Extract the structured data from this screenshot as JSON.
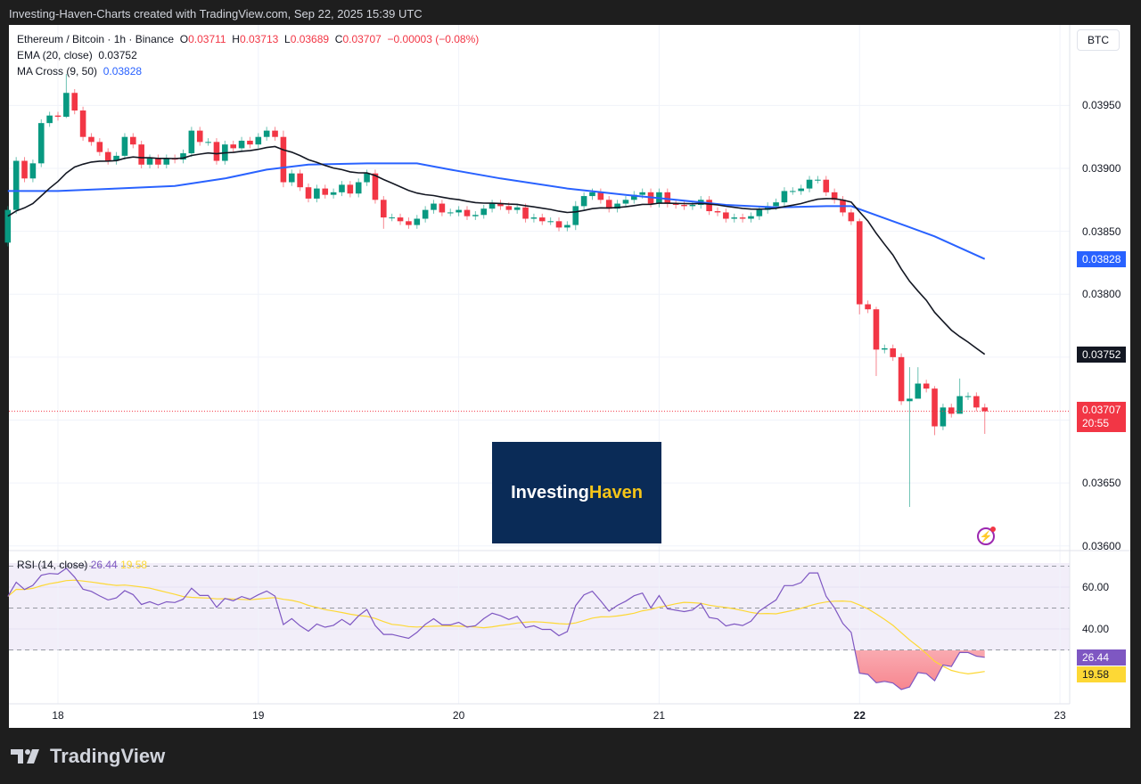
{
  "header": {
    "title": "Investing-Haven-Charts created with TradingView.com, Sep 22, 2025 15:39 UTC"
  },
  "legend": {
    "symbol": "Ethereum / Bitcoin · 1h · Binance",
    "o_label": "O",
    "o": "0.03711",
    "h_label": "H",
    "h": "0.03713",
    "l_label": "L",
    "l": "0.03689",
    "c_label": "C",
    "c": "0.03707",
    "change": "−0.00003 (−0.08%)",
    "ema_label": "EMA (20, close)",
    "ema_value": "0.03752",
    "ma_label": "MA Cross (9, 50)",
    "ma_value": "0.03828",
    "rsi_label": "RSI (14, close)",
    "rsi_value": "26.44",
    "rsi_ma_value": "19.58"
  },
  "currency_button": "BTC",
  "watermark": {
    "part1": "Investing",
    "part2": "Haven"
  },
  "brand": "TradingView",
  "price_tags": {
    "ma": "0.03828",
    "ema": "0.03752",
    "last": "0.03707",
    "countdown": "20:55",
    "rsi": "26.44",
    "rsi_ma": "19.58"
  },
  "colors": {
    "up": "#089981",
    "down": "#f23645",
    "ema": "#131722",
    "ma": "#2962ff",
    "rsi": "#7e57c2",
    "rsi_ma": "#fdd835"
  },
  "chart_data": {
    "type": "candlestick",
    "title": "Ethereum / Bitcoin · 1h · Binance",
    "start": "Sep 17 18:00",
    "interval_hours": 1,
    "first_open": 0.03841,
    "close": [
      0.03867,
      0.03906,
      0.03892,
      0.03904,
      0.03936,
      0.03942,
      0.03941,
      0.0396,
      0.03946,
      0.03925,
      0.03921,
      0.03913,
      0.03906,
      0.0391,
      0.03925,
      0.03919,
      0.03903,
      0.03908,
      0.03903,
      0.03908,
      0.03907,
      0.03912,
      0.0393,
      0.03921,
      0.03921,
      0.03906,
      0.03919,
      0.03916,
      0.03922,
      0.03919,
      0.03925,
      0.0393,
      0.03925,
      0.03889,
      0.03896,
      0.03885,
      0.03876,
      0.03884,
      0.03879,
      0.03881,
      0.03887,
      0.0388,
      0.03889,
      0.03896,
      0.03875,
      0.03861,
      0.03861,
      0.03858,
      0.03855,
      0.0386,
      0.03867,
      0.03872,
      0.03865,
      0.03865,
      0.03867,
      0.03862,
      0.03863,
      0.03868,
      0.03872,
      0.0387,
      0.03867,
      0.03869,
      0.0386,
      0.03861,
      0.03858,
      0.03858,
      0.03853,
      0.03855,
      0.0387,
      0.03878,
      0.03881,
      0.03875,
      0.03868,
      0.03872,
      0.03875,
      0.03879,
      0.03881,
      0.03872,
      0.03881,
      0.03872,
      0.03871,
      0.0387,
      0.03871,
      0.03875,
      0.03866,
      0.03865,
      0.0386,
      0.03861,
      0.0386,
      0.03862,
      0.03867,
      0.0387,
      0.03873,
      0.03882,
      0.03882,
      0.03884,
      0.03891,
      0.03891,
      0.03881,
      0.03875,
      0.03865,
      0.03858,
      0.03792,
      0.03788,
      0.03756,
      0.03757,
      0.0375,
      0.03715,
      0.03717,
      0.03729,
      0.03725,
      0.03695,
      0.0371,
      0.03705,
      0.03719,
      0.03719,
      0.0371,
      0.03707
    ],
    "wick_overrides": {
      "7": [
        0.03975,
        0.0394
      ],
      "33": [
        0.0393,
        0.03885
      ],
      "45": [
        0.03878,
        0.03852
      ],
      "68": [
        0.03874,
        0.03851
      ],
      "102": [
        0.0386,
        0.03784
      ],
      "104": [
        0.0379,
        0.03735
      ],
      "108": [
        0.03742,
        0.03631
      ],
      "109": [
        0.03742,
        0.03722
      ],
      "111": [
        0.03727,
        0.03688
      ],
      "114": [
        0.03733,
        0.03714
      ],
      "117": [
        0.03713,
        0.03689
      ]
    },
    "ma50": [
      [
        0,
        0.03882
      ],
      [
        6,
        0.03882
      ],
      [
        13,
        0.03884
      ],
      [
        20,
        0.03886
      ],
      [
        26,
        0.03892
      ],
      [
        31,
        0.03899
      ],
      [
        36,
        0.03903
      ],
      [
        43,
        0.03904
      ],
      [
        49,
        0.03904
      ],
      [
        53,
        0.03899
      ],
      [
        59,
        0.03892
      ],
      [
        67,
        0.03884
      ],
      [
        74,
        0.03879
      ],
      [
        80,
        0.03875
      ],
      [
        86,
        0.03871
      ],
      [
        92,
        0.03869
      ],
      [
        98,
        0.0387
      ],
      [
        101,
        0.0387
      ],
      [
        106,
        0.03858
      ],
      [
        111,
        0.03846
      ],
      [
        117,
        0.03828
      ]
    ],
    "ema_seed": 0.03862,
    "y_ticks": [
      "0.03950",
      "0.03900",
      "0.03850",
      "0.03800",
      "0.03650",
      "0.03600"
    ],
    "ylim": [
      0.03598,
      0.0398
    ],
    "x_ticks": [
      {
        "label": "18",
        "index": 6
      },
      {
        "label": "19",
        "index": 30
      },
      {
        "label": "20",
        "index": 54
      },
      {
        "label": "21",
        "index": 78
      },
      {
        "label": "22",
        "index": 102
      },
      {
        "label": "23",
        "index": 126
      }
    ],
    "rsi": {
      "period": 14,
      "ma_period": 14,
      "ticks": [
        "60.00",
        "40.00"
      ],
      "bands": [
        70,
        50,
        30
      ]
    }
  }
}
